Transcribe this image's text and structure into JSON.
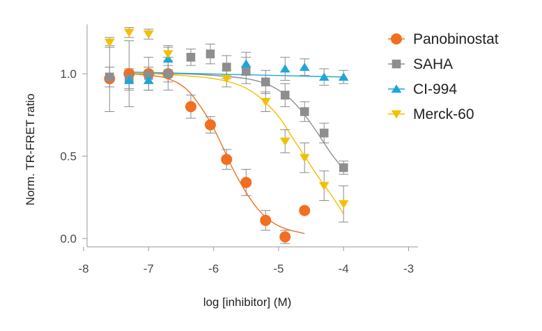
{
  "chart_data": {
    "type": "scatter",
    "title": "",
    "xlabel": "log [inhibitor] (M)",
    "ylabel": "Norm. TR-FRET ratio",
    "xlim": [
      -8,
      -3
    ],
    "ylim": [
      -0.05,
      1.3
    ],
    "xticks": [
      -8,
      -7,
      -6,
      -5,
      -4,
      -3
    ],
    "xtick_labels": [
      "-8",
      "-7",
      "-6",
      "-5",
      "-4",
      "-3"
    ],
    "yticks": [
      0.0,
      0.5,
      1.0
    ],
    "ytick_labels": [
      "0.0",
      "0.5",
      "1.0"
    ],
    "grid": false,
    "legend_position": "right",
    "series": [
      {
        "name": "Panobinostat",
        "color": "#f26f1f",
        "marker": "circle",
        "x": [
          -7.6,
          -7.3,
          -7.0,
          -6.7,
          -6.35,
          -6.05,
          -5.8,
          -5.5,
          -5.2,
          -4.9,
          -4.6
        ],
        "y": [
          0.97,
          1.0,
          1.0,
          1.0,
          0.8,
          0.69,
          0.48,
          0.34,
          0.11,
          0.01,
          0.17
        ],
        "err": [
          0.2,
          0.2,
          0.1,
          0.1,
          0.07,
          0.05,
          0.06,
          0.08,
          0.06,
          0.04,
          0.0
        ],
        "fit_x": [
          -7.3,
          -7.0,
          -6.7,
          -6.4,
          -6.1,
          -5.9,
          -5.7,
          -5.5,
          -5.3,
          -5.1,
          -4.9,
          -4.6
        ],
        "fit_y": [
          1.0,
          0.99,
          0.97,
          0.9,
          0.74,
          0.59,
          0.42,
          0.28,
          0.17,
          0.1,
          0.06,
          0.03
        ]
      },
      {
        "name": "SAHA",
        "color": "#8e8e8e",
        "marker": "square",
        "x": [
          -7.6,
          -7.3,
          -7.0,
          -6.7,
          -6.35,
          -6.05,
          -5.8,
          -5.5,
          -5.2,
          -4.9,
          -4.6,
          -4.3,
          -4.0
        ],
        "y": [
          0.98,
          0.97,
          0.99,
          1.0,
          1.1,
          1.12,
          1.04,
          1.02,
          0.95,
          0.87,
          0.77,
          0.64,
          0.43
        ],
        "err": [
          0.06,
          0.06,
          0.05,
          0.05,
          0.05,
          0.06,
          0.07,
          0.08,
          0.07,
          0.07,
          0.06,
          0.06,
          0.04
        ],
        "fit_x": [
          -7.3,
          -7.0,
          -6.5,
          -6.0,
          -5.5,
          -5.2,
          -5.0,
          -4.8,
          -4.6,
          -4.4,
          -4.2,
          -4.0
        ],
        "fit_y": [
          1.0,
          1.0,
          1.0,
          0.99,
          0.97,
          0.94,
          0.9,
          0.84,
          0.75,
          0.64,
          0.52,
          0.42
        ]
      },
      {
        "name": "CI-994",
        "color": "#1fa6d9",
        "marker": "triangle-up",
        "x": [
          -7.3,
          -7.0,
          -6.7,
          -5.5,
          -4.9,
          -4.6,
          -4.3,
          -4.0
        ],
        "y": [
          0.96,
          0.96,
          1.09,
          1.06,
          1.03,
          1.04,
          0.98,
          0.98
        ],
        "err": [
          0.06,
          0.06,
          0.08,
          0.07,
          0.07,
          0.05,
          0.05,
          0.04
        ],
        "fit_x": [
          -7.3,
          -4.0
        ],
        "fit_y": [
          1.01,
          0.98
        ]
      },
      {
        "name": "Merck-60",
        "color": "#f2c000",
        "marker": "triangle-down",
        "x": [
          -7.6,
          -7.3,
          -7.0,
          -6.7,
          -5.8,
          -5.2,
          -4.9,
          -4.6,
          -4.3,
          -4.0
        ],
        "y": [
          1.19,
          1.25,
          1.24,
          1.12,
          0.97,
          0.83,
          0.59,
          0.49,
          0.32,
          0.21
        ],
        "err": [
          0.03,
          0.03,
          0.03,
          0.04,
          0.05,
          0.06,
          0.07,
          0.09,
          0.09,
          0.11
        ],
        "fit_x": [
          -7.3,
          -7.0,
          -6.5,
          -6.0,
          -5.6,
          -5.3,
          -5.0,
          -4.8,
          -4.6,
          -4.4,
          -4.2,
          -4.0
        ],
        "fit_y": [
          1.0,
          1.0,
          0.99,
          0.97,
          0.93,
          0.86,
          0.74,
          0.62,
          0.5,
          0.38,
          0.27,
          0.15
        ]
      }
    ]
  }
}
